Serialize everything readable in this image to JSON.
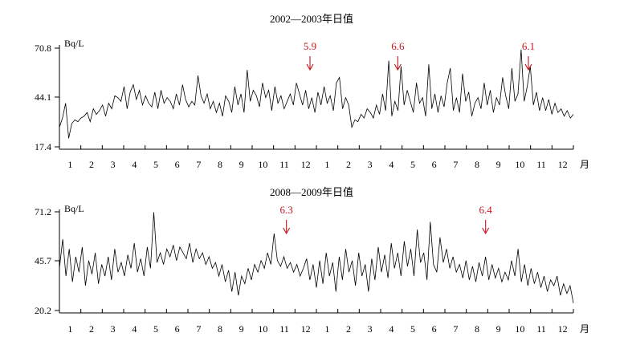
{
  "chart_data": [
    {
      "type": "line",
      "title": "2002—2003年日值",
      "ylabel": "Bq/L",
      "xlabel": "月",
      "yticks": [
        "70.8",
        "44.1",
        "17.4"
      ],
      "ylim": [
        17.4,
        70.8
      ],
      "xtick_labels": [
        "1",
        "2",
        "3",
        "4",
        "5",
        "6",
        "7",
        "8",
        "9",
        "10",
        "11",
        "12",
        "1",
        "2",
        "3",
        "4",
        "5",
        "6",
        "7",
        "8",
        "9",
        "10",
        "11",
        "12"
      ],
      "months": 24,
      "series": [
        {
          "values": [
            28,
            33,
            41,
            22,
            30,
            32,
            31,
            33,
            34,
            36,
            31,
            38,
            35,
            37,
            40,
            34,
            41,
            38,
            45,
            44,
            42,
            50,
            38,
            47,
            51,
            43,
            48,
            40,
            45,
            41,
            39,
            47,
            38,
            48,
            41,
            44,
            42,
            38,
            46,
            40,
            51,
            43,
            39,
            42,
            40,
            56,
            45,
            41,
            46,
            38,
            42,
            36,
            41,
            34,
            45,
            42,
            36,
            50,
            40,
            46,
            36,
            59,
            42,
            48,
            45,
            39,
            52,
            44,
            48,
            37,
            50,
            41,
            45,
            38,
            42,
            46,
            40,
            52,
            46,
            40,
            48,
            38,
            44,
            36,
            47,
            40,
            50,
            41,
            45,
            37,
            52,
            55,
            38,
            44,
            40,
            28,
            32,
            31,
            35,
            33,
            38,
            36,
            33,
            40,
            35,
            46,
            37,
            64,
            34,
            42,
            37,
            61,
            40,
            48,
            42,
            36,
            52,
            41,
            44,
            34,
            62,
            38,
            46,
            36,
            45,
            39,
            52,
            60,
            37,
            44,
            36,
            57,
            42,
            47,
            34,
            41,
            44,
            38,
            52,
            40,
            48,
            36,
            44,
            40,
            55,
            45,
            38,
            60,
            42,
            46,
            70,
            42,
            50,
            61,
            40,
            47,
            37,
            44,
            37,
            43,
            35,
            41,
            36,
            38,
            34,
            37,
            33,
            35
          ],
          "annotation_values": [
            "5.9",
            "6.6",
            "6.1"
          ],
          "annotation_months": [
            11.7,
            15.8,
            21.9
          ]
        }
      ]
    },
    {
      "type": "line",
      "title": "2008—2009年日值",
      "ylabel": "Bq/L",
      "xlabel": "月",
      "yticks": [
        "71.2",
        "45.7",
        "20.2"
      ],
      "ylim": [
        20.2,
        71.2
      ],
      "xtick_labels": [
        "1",
        "2",
        "3",
        "4",
        "5",
        "6",
        "7",
        "8",
        "9",
        "10",
        "11",
        "12",
        "1",
        "2",
        "3",
        "4",
        "5",
        "6",
        "7",
        "8",
        "9",
        "10",
        "11",
        "12"
      ],
      "months": 24,
      "series": [
        {
          "values": [
            42,
            57,
            38,
            52,
            35,
            48,
            40,
            53,
            33,
            46,
            39,
            50,
            34,
            44,
            38,
            48,
            36,
            52,
            40,
            45,
            38,
            49,
            42,
            55,
            40,
            47,
            38,
            53,
            42,
            71,
            45,
            50,
            44,
            52,
            48,
            54,
            46,
            53,
            50,
            47,
            55,
            45,
            52,
            47,
            50,
            44,
            48,
            42,
            45,
            38,
            44,
            35,
            41,
            30,
            40,
            28,
            38,
            34,
            42,
            36,
            44,
            40,
            46,
            42,
            50,
            44,
            60,
            46,
            43,
            48,
            42,
            45,
            40,
            44,
            38,
            42,
            47,
            36,
            44,
            32,
            46,
            34,
            50,
            38,
            45,
            30,
            48,
            36,
            52,
            40,
            46,
            33,
            50,
            38,
            44,
            30,
            47,
            36,
            53,
            40,
            49,
            37,
            55,
            42,
            50,
            38,
            56,
            43,
            52,
            38,
            62,
            45,
            50,
            36,
            66,
            44,
            40,
            58,
            45,
            52,
            42,
            48,
            40,
            44,
            37,
            46,
            36,
            43,
            35,
            45,
            38,
            48,
            36,
            44,
            37,
            42,
            35,
            40,
            36,
            46,
            38,
            52,
            35,
            44,
            33,
            42,
            34,
            40,
            32,
            38,
            30,
            36,
            33,
            38,
            28,
            34,
            29,
            33,
            24
          ],
          "annotation_values": [
            "6.3",
            "6.4"
          ],
          "annotation_months": [
            10.6,
            19.9
          ]
        }
      ]
    }
  ]
}
